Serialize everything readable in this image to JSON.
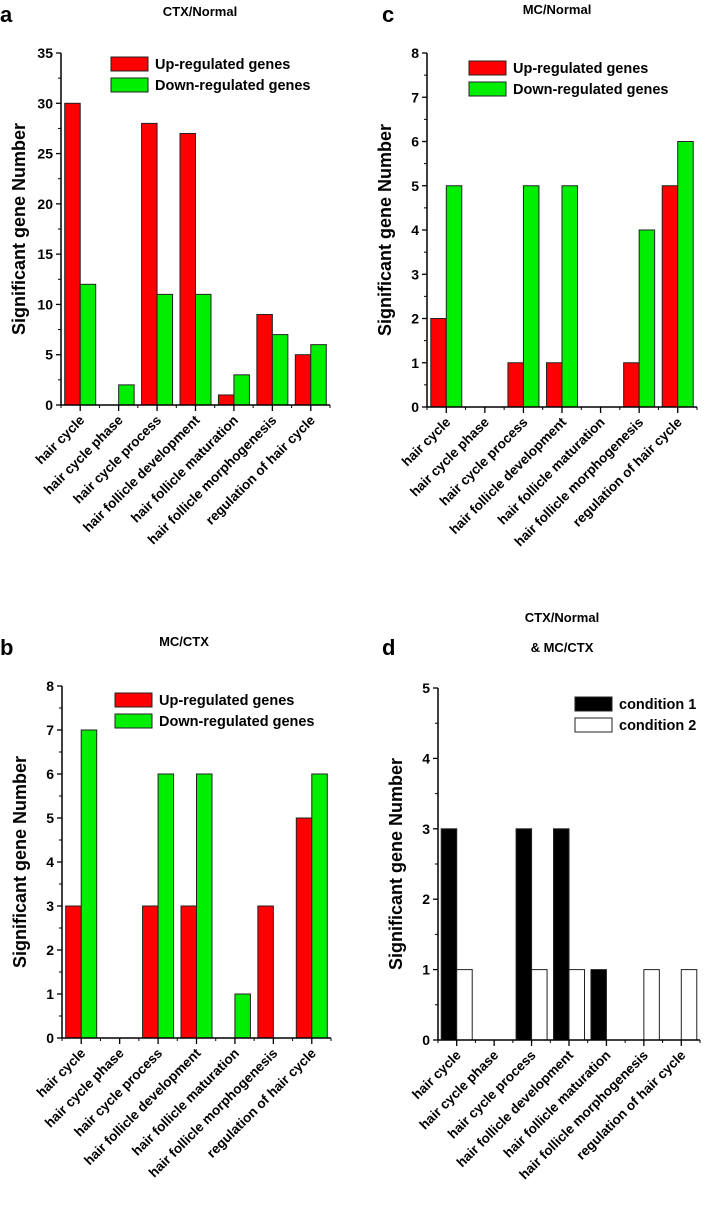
{
  "chart_data": [
    {
      "panel": "a",
      "type": "bar",
      "title": "CTX/Normal",
      "ylabel": "Significant gene Number",
      "xlabel": "",
      "ylim": [
        0,
        35
      ],
      "yticks": [
        0,
        5,
        10,
        15,
        20,
        25,
        30,
        35
      ],
      "yminor": 2.5,
      "categories": [
        "hair cycle",
        "hair cycle phase",
        "hair cycle process",
        "hair follicle development",
        "hair follicle maturation",
        "hair follicle morphogenesis",
        "regulation of hair cycle"
      ],
      "legend_position": "top-right",
      "series": [
        {
          "name": "Up-regulated genes",
          "color": "#ff0000",
          "values": [
            30,
            0,
            28,
            27,
            1,
            9,
            5
          ]
        },
        {
          "name": "Down-regulated genes",
          "color": "#00ee00",
          "values": [
            12,
            2,
            11,
            11,
            3,
            7,
            6
          ]
        }
      ]
    },
    {
      "panel": "c",
      "type": "bar",
      "title": "MC/Normal",
      "ylabel": "Significant gene Number",
      "xlabel": "",
      "ylim": [
        0,
        8
      ],
      "yticks": [
        0,
        1,
        2,
        3,
        4,
        5,
        6,
        7,
        8
      ],
      "yminor": 0.5,
      "categories": [
        "hair cycle",
        "hair cycle phase",
        "hair cycle process",
        "hair follicle development",
        "hair follicle maturation",
        "hair follicle morphogenesis",
        "regulation of hair cycle"
      ],
      "legend_position": "top-right",
      "series": [
        {
          "name": "Up-regulated genes",
          "color": "#ff0000",
          "values": [
            2,
            0,
            1,
            1,
            0,
            1,
            5
          ]
        },
        {
          "name": "Down-regulated genes",
          "color": "#00ee00",
          "values": [
            5,
            0,
            5,
            5,
            0,
            4,
            6
          ]
        }
      ]
    },
    {
      "panel": "b",
      "type": "bar",
      "title": "MC/CTX",
      "ylabel": "Significant gene Number",
      "xlabel": "",
      "ylim": [
        0,
        8
      ],
      "yticks": [
        0,
        1,
        2,
        3,
        4,
        5,
        6,
        7,
        8
      ],
      "yminor": 0.5,
      "categories": [
        "hair cycle",
        "hair cycle phase",
        "hair cycle process",
        "hair follicle development",
        "hair follicle maturation",
        "hair follicle morphogenesis",
        "regulation of hair cycle"
      ],
      "legend_position": "top-right",
      "series": [
        {
          "name": "Up-regulated genes",
          "color": "#ff0000",
          "values": [
            3,
            0,
            3,
            3,
            0,
            3,
            5
          ]
        },
        {
          "name": "Down-regulated genes",
          "color": "#00ee00",
          "values": [
            7,
            0,
            6,
            6,
            1,
            0,
            6
          ]
        }
      ]
    },
    {
      "panel": "d",
      "type": "bar",
      "title": "CTX/Normal",
      "subtitle": "& MC/CTX",
      "ylabel": "Significant gene Number",
      "xlabel": "",
      "ylim": [
        0,
        5
      ],
      "yticks": [
        0,
        1,
        2,
        3,
        4,
        5
      ],
      "yminor": 0.5,
      "categories": [
        "hair cycle",
        "hair cycle phase",
        "hair cycle process",
        "hair follicle development",
        "hair follicle maturation",
        "hair follicle morphogenesis",
        "regulation of hair cycle"
      ],
      "legend_position": "top-right",
      "series": [
        {
          "name": "condition 1",
          "color": "#000000",
          "values": [
            3,
            0,
            3,
            3,
            1,
            0,
            0
          ]
        },
        {
          "name": "condition 2",
          "color": "#ffffff",
          "values": [
            1,
            0,
            1,
            1,
            0,
            1,
            1
          ]
        }
      ]
    }
  ]
}
